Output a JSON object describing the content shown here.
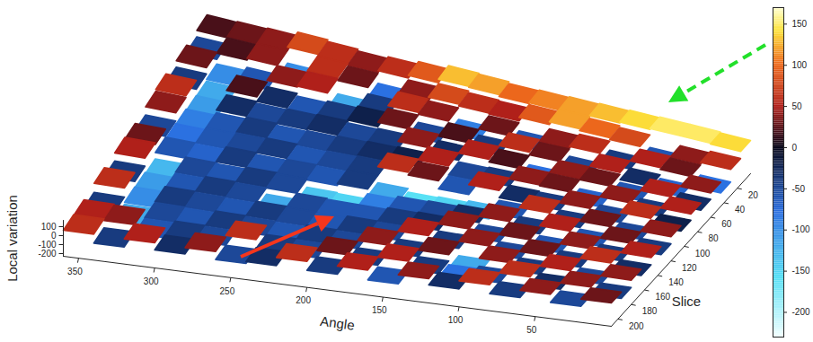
{
  "chart_data": {
    "type": "surface",
    "xlabel": "Angle",
    "ylabel": "Slice",
    "zlabel": "Local variation",
    "xlim": [
      0,
      360
    ],
    "xticks": [
      50,
      100,
      150,
      200,
      250,
      300,
      350
    ],
    "ylim": [
      0,
      210
    ],
    "yticks": [
      20,
      40,
      60,
      80,
      100,
      120,
      140,
      160,
      180,
      200
    ],
    "zlim": [
      -230,
      170
    ],
    "zticks": [
      -200,
      -100,
      0,
      100
    ],
    "cells": {
      "x_edges": [
        0,
        20,
        40,
        60,
        80,
        100,
        120,
        140,
        160,
        180,
        200,
        220,
        240,
        260,
        280,
        300,
        320,
        340,
        360
      ],
      "y_edges": [
        0,
        15,
        30,
        45,
        60,
        75,
        90,
        105,
        120,
        135,
        150,
        165,
        180,
        195,
        210
      ],
      "values": [
        [
          140,
          150,
          150,
          140,
          130,
          120,
          110,
          100,
          120,
          130,
          90,
          60,
          40,
          60,
          80,
          40,
          30,
          20
        ],
        [
          60,
          40,
          -60,
          80,
          100,
          120,
          90,
          50,
          60,
          80,
          40,
          -80,
          30,
          60,
          -100,
          40,
          20,
          -50
        ],
        [
          -80,
          30,
          50,
          -40,
          60,
          40,
          -60,
          30,
          -90,
          40,
          60,
          -40,
          -120,
          50,
          40,
          -60,
          -100,
          30
        ],
        [
          40,
          -70,
          -30,
          50,
          -50,
          30,
          60,
          -40,
          20,
          -50,
          30,
          -20,
          -40,
          -60,
          -30,
          20,
          -120,
          -40
        ],
        [
          -30,
          50,
          -60,
          30,
          40,
          -80,
          20,
          50,
          -30,
          40,
          -40,
          -50,
          -30,
          -40,
          -50,
          -30,
          -110,
          60
        ],
        [
          50,
          -40,
          40,
          -70,
          30,
          40,
          -40,
          -50,
          50,
          -20,
          -30,
          -40,
          -50,
          -60,
          -40,
          -60,
          -90,
          40
        ],
        [
          -20,
          60,
          -50,
          40,
          -40,
          -30,
          50,
          -60,
          30,
          60,
          -40,
          -50,
          -60,
          -40,
          -50,
          -60,
          -80,
          -50
        ],
        [
          40,
          -50,
          30,
          -40,
          60,
          -60,
          -130,
          -150,
          -160,
          -120,
          -40,
          -60,
          -50,
          -60,
          -40,
          -70,
          -60,
          30
        ],
        [
          -40,
          30,
          -60,
          50,
          -40,
          40,
          -30,
          -50,
          -60,
          -90,
          -150,
          -140,
          -50,
          -40,
          -60,
          -50,
          -130,
          50
        ],
        [
          50,
          -40,
          40,
          -60,
          30,
          -50,
          40,
          -30,
          -40,
          -60,
          -60,
          -50,
          -120,
          -50,
          -40,
          -60,
          -110,
          -40
        ],
        [
          -30,
          60,
          -40,
          30,
          -50,
          40,
          -40,
          50,
          -50,
          -40,
          -60,
          -50,
          -40,
          -60,
          -50,
          -40,
          -100,
          60
        ],
        [
          40,
          -50,
          50,
          -40,
          40,
          -120,
          30,
          -40,
          40,
          -50,
          -40,
          -60,
          -50,
          -40,
          -60,
          -50,
          -120,
          -40
        ],
        [
          -40,
          40,
          -30,
          60,
          -50,
          -80,
          -40,
          50,
          -40,
          30,
          -50,
          -40,
          60,
          -50,
          -40,
          -60,
          40,
          50
        ],
        [
          30,
          -50,
          40,
          -40,
          60,
          -30,
          40,
          -60,
          50,
          -40,
          60,
          -30,
          -50,
          40,
          -30,
          50,
          -40,
          60
        ]
      ]
    },
    "colorbar": {
      "range": [
        -230,
        170
      ],
      "ticks": [
        -200,
        -150,
        -100,
        -50,
        0,
        50,
        100,
        150
      ]
    }
  }
}
